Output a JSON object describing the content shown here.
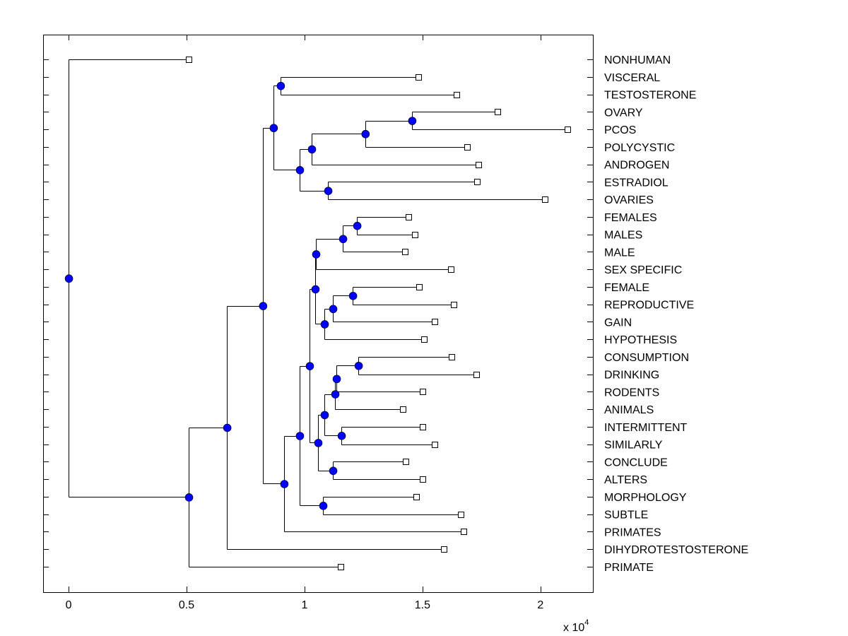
{
  "chart_data": {
    "type": "dendrogram",
    "title": "",
    "xlabel": "",
    "ylabel": "",
    "x_scale_label": "x 10",
    "x_scale_exponent": "4",
    "xlim": [
      -0.108,
      2.222
    ],
    "xticks": [
      0,
      0.5,
      1,
      1.5,
      2
    ],
    "xtick_labels": [
      "0",
      "0.5",
      "1",
      "1.5",
      "2"
    ],
    "grid": false,
    "node_color": "#0000ff",
    "leaf_marker_color": "#ffffff",
    "line_color": "#000000",
    "leaves": [
      {
        "label": "NONHUMAN",
        "x": 0.509
      },
      {
        "label": "VISCERAL",
        "x": 1.482
      },
      {
        "label": "TESTOSTERONE",
        "x": 1.644
      },
      {
        "label": "OVARY",
        "x": 1.817
      },
      {
        "label": "PCOS",
        "x": 2.114
      },
      {
        "label": "POLYCYSTIC",
        "x": 1.689
      },
      {
        "label": "ANDROGEN",
        "x": 1.737
      },
      {
        "label": "ESTRADIOL",
        "x": 1.731
      },
      {
        "label": "OVARIES",
        "x": 2.018
      },
      {
        "label": "FEMALES",
        "x": 1.44
      },
      {
        "label": "MALES",
        "x": 1.467
      },
      {
        "label": "MALE",
        "x": 1.425
      },
      {
        "label": "SEX SPECIFIC",
        "x": 1.62
      },
      {
        "label": "FEMALE",
        "x": 1.485
      },
      {
        "label": "REPRODUCTIVE",
        "x": 1.632
      },
      {
        "label": "GAIN",
        "x": 1.551
      },
      {
        "label": "HYPOTHESIS",
        "x": 1.506
      },
      {
        "label": "CONSUMPTION",
        "x": 1.623
      },
      {
        "label": "DRINKING",
        "x": 1.728
      },
      {
        "label": "RODENTS",
        "x": 1.5
      },
      {
        "label": "ANIMALS",
        "x": 1.416
      },
      {
        "label": "INTERMITTENT",
        "x": 1.5
      },
      {
        "label": "SIMILARLY",
        "x": 1.551
      },
      {
        "label": "CONCLUDE",
        "x": 1.428
      },
      {
        "label": "ALTERS",
        "x": 1.5
      },
      {
        "label": "MORPHOLOGY",
        "x": 1.473
      },
      {
        "label": "SUBTLE",
        "x": 1.662
      },
      {
        "label": "PRIMATES",
        "x": 1.674
      },
      {
        "label": "DIHYDROTESTOSTERONE",
        "x": 1.59
      },
      {
        "label": "PRIMATE",
        "x": 1.153
      }
    ],
    "nodes": [
      {
        "id": "n1",
        "x": 1.455,
        "children": [
          "L3",
          "L4"
        ]
      },
      {
        "id": "n2",
        "x": 1.257,
        "children": [
          "n1",
          "L5"
        ]
      },
      {
        "id": "n3",
        "x": 1.03,
        "children": [
          "n2",
          "L6"
        ]
      },
      {
        "id": "n4",
        "x": 1.099,
        "children": [
          "L7",
          "L8"
        ]
      },
      {
        "id": "n5",
        "x": 0.979,
        "children": [
          "n3",
          "n4"
        ]
      },
      {
        "id": "n6",
        "x": 0.898,
        "children": [
          "L1",
          "L2"
        ]
      },
      {
        "id": "n7",
        "x": 0.868,
        "children": [
          "n6",
          "n5"
        ]
      },
      {
        "id": "n8",
        "x": 1.222,
        "children": [
          "L9",
          "L10"
        ]
      },
      {
        "id": "n9",
        "x": 1.162,
        "children": [
          "n8",
          "L11"
        ]
      },
      {
        "id": "n10",
        "x": 1.048,
        "children": [
          "n9",
          "L12"
        ]
      },
      {
        "id": "n11",
        "x": 1.204,
        "children": [
          "L13",
          "L14"
        ]
      },
      {
        "id": "n12",
        "x": 1.12,
        "children": [
          "n11",
          "L15"
        ]
      },
      {
        "id": "n13",
        "x": 1.084,
        "children": [
          "n12",
          "L16"
        ]
      },
      {
        "id": "n14",
        "x": 1.045,
        "children": [
          "n10",
          "n13"
        ]
      },
      {
        "id": "n15",
        "x": 1.228,
        "children": [
          "L17",
          "L18"
        ]
      },
      {
        "id": "n16",
        "x": 1.135,
        "children": [
          "n15",
          "L19"
        ]
      },
      {
        "id": "n17",
        "x": 1.129,
        "children": [
          "n16",
          "L20"
        ]
      },
      {
        "id": "n18",
        "x": 1.156,
        "children": [
          "L21",
          "L22"
        ]
      },
      {
        "id": "n19",
        "x": 1.084,
        "children": [
          "n17",
          "n18"
        ]
      },
      {
        "id": "n20",
        "x": 1.12,
        "children": [
          "L23",
          "L24"
        ]
      },
      {
        "id": "n21",
        "x": 1.057,
        "children": [
          "n19",
          "n20"
        ]
      },
      {
        "id": "n22",
        "x": 1.021,
        "children": [
          "n14",
          "n21"
        ]
      },
      {
        "id": "n23",
        "x": 1.078,
        "children": [
          "L25",
          "L26"
        ]
      },
      {
        "id": "n24",
        "x": 0.979,
        "children": [
          "n22",
          "n23"
        ]
      },
      {
        "id": "n25",
        "x": 0.913,
        "children": [
          "n24",
          "L27"
        ]
      },
      {
        "id": "n26",
        "x": 0.823,
        "children": [
          "n7",
          "n25"
        ]
      },
      {
        "id": "n27",
        "x": 0.671,
        "children": [
          "n26",
          "L28"
        ]
      },
      {
        "id": "n28",
        "x": 0.509,
        "children": [
          "n27",
          "L29"
        ]
      },
      {
        "id": "n29",
        "x": 0.0,
        "children": [
          "L0",
          "n28"
        ]
      }
    ]
  }
}
